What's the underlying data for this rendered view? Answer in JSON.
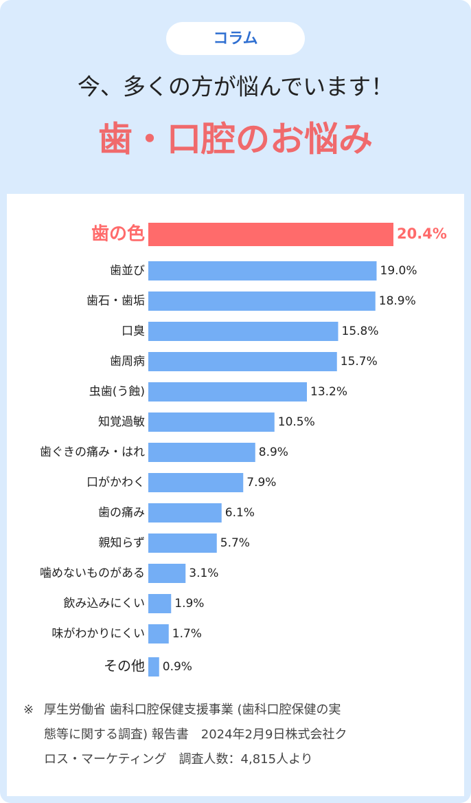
{
  "badge": "コラム",
  "chart_data": {
    "type": "bar",
    "orientation": "horizontal",
    "title": "今、多くの方が悩んでいます！",
    "subtitle": "歯・口腔のお悩み",
    "categories": [
      "歯の色",
      "歯並び",
      "歯石・歯垢",
      "口臭",
      "歯周病",
      "虫歯(う蝕)",
      "知覚過敏",
      "歯ぐきの痛み・はれ",
      "口がかわく",
      "歯の痛み",
      "親知らず",
      "噛めないものがある",
      "飲み込みにくい",
      "味がわかりにくい",
      "その他"
    ],
    "values": [
      20.4,
      19.0,
      18.9,
      15.8,
      15.7,
      13.2,
      10.5,
      8.9,
      7.9,
      6.1,
      5.7,
      3.1,
      1.9,
      1.7,
      0.9
    ],
    "value_labels": [
      "20.4%",
      "19.0%",
      "18.9%",
      "15.8%",
      "15.7%",
      "13.2%",
      "10.5%",
      "8.9%",
      "7.9%",
      "6.1%",
      "5.7%",
      "3.1%",
      "1.9%",
      "1.7%",
      "0.9%"
    ],
    "color": "#74aef5",
    "highlight_color": "#ff6b6b",
    "highlight_index": 0
  },
  "note": {
    "mark": "※",
    "lines": [
      "厚生労働省 歯科口腔保健支援事業 (歯科口腔保健の実",
      "態等に関する調査) 報告書　2024年2月9日株式会社ク",
      "ロス・マーケティング　調査人数：4,815人より"
    ]
  }
}
